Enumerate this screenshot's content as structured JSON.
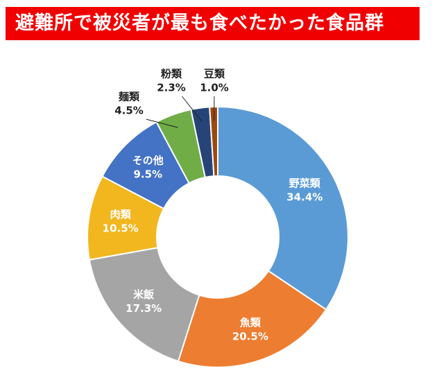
{
  "chart_data": {
    "type": "donut",
    "title": "避難所で被災者が最も食べたかった食品群",
    "categories": [
      "野菜類",
      "魚類",
      "米飯",
      "肉類",
      "その他",
      "麺類",
      "粉類",
      "豆類"
    ],
    "values": [
      34.4,
      20.5,
      17.3,
      10.5,
      9.5,
      4.5,
      2.3,
      1.0
    ],
    "value_labels": [
      "34.4%",
      "20.5%",
      "17.3%",
      "10.5%",
      "9.5%",
      "4.5%",
      "2.3%",
      "1.0%"
    ],
    "colors": [
      "#5b9bd5",
      "#ed7d31",
      "#a5a5a5",
      "#f2b61f",
      "#4472c4",
      "#70ad47",
      "#264478",
      "#9e480e"
    ]
  }
}
